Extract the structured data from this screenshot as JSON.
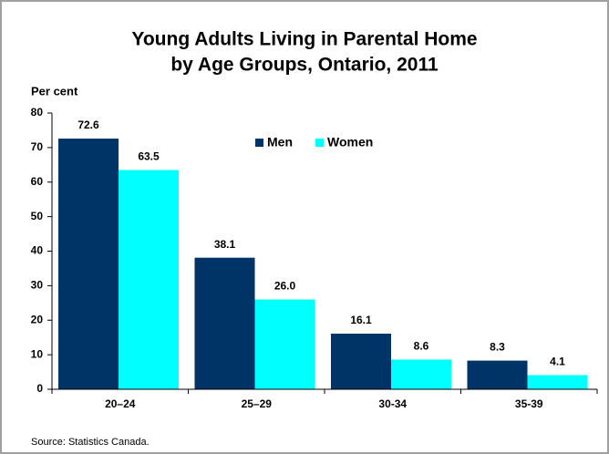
{
  "chart_data": {
    "type": "bar",
    "title": [
      "Young Adults Living in Parental Home",
      "by Age Groups, Ontario, 2011"
    ],
    "y_label": "Per cent",
    "source": "Source: Statistics Canada.",
    "categories": [
      "20–24",
      "25–29",
      "30-34",
      "35-39"
    ],
    "series": [
      {
        "name": "Men",
        "color": "#003366",
        "values": [
          72.6,
          38.1,
          16.1,
          8.3
        ],
        "value_labels": [
          "72.6",
          "38.1",
          "16.1",
          "8.3"
        ]
      },
      {
        "name": "Women",
        "color": "#00ffff",
        "values": [
          63.5,
          26.0,
          8.6,
          4.1
        ],
        "value_labels": [
          "63.5",
          "26.0",
          "8.6",
          "4.1"
        ]
      }
    ],
    "ylim": [
      0,
      80
    ],
    "yticks": [
      0,
      10,
      20,
      30,
      40,
      50,
      60,
      70,
      80
    ],
    "grid": false,
    "legend": "top"
  }
}
